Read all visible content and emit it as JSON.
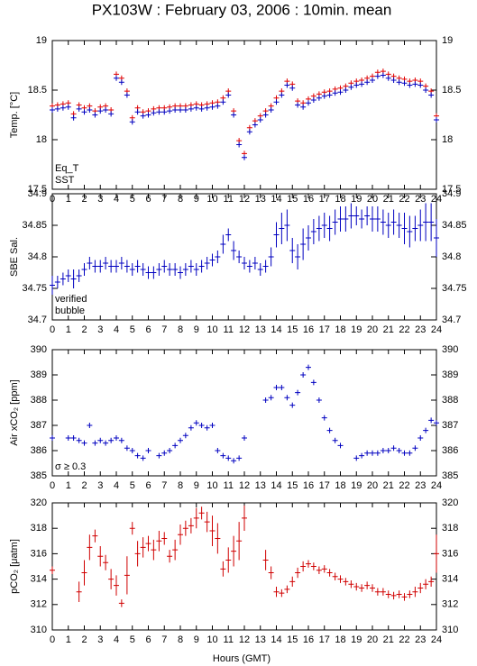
{
  "title": "PX103W : February 03, 2006 : 10min. mean",
  "x_label": "Hours (GMT)",
  "chart_data": [
    {
      "type": "scatter",
      "y_label": "Temp. [°C]",
      "xlim": [
        0,
        24
      ],
      "ylim": [
        17.5,
        19
      ],
      "xticks": [
        0,
        1,
        2,
        3,
        4,
        5,
        6,
        7,
        8,
        9,
        10,
        11,
        12,
        13,
        14,
        15,
        16,
        17,
        18,
        19,
        20,
        21,
        22,
        23,
        24
      ],
      "yticks": [
        17.5,
        18,
        18.5,
        19
      ],
      "x": [
        0,
        0.33,
        0.67,
        1,
        1.33,
        1.67,
        2,
        2.33,
        2.67,
        3,
        3.33,
        3.67,
        4,
        4.33,
        4.67,
        5,
        5.33,
        5.67,
        6,
        6.33,
        6.67,
        7,
        7.33,
        7.67,
        8,
        8.33,
        8.67,
        9,
        9.33,
        9.67,
        10,
        10.33,
        10.67,
        11,
        11.33,
        11.67,
        12,
        12.33,
        12.67,
        13,
        13.33,
        13.67,
        14,
        14.33,
        14.67,
        15,
        15.33,
        15.67,
        16,
        16.33,
        16.67,
        17,
        17.33,
        17.67,
        18,
        18.33,
        18.67,
        19,
        19.33,
        19.67,
        20,
        20.33,
        20.67,
        21,
        21.33,
        21.67,
        22,
        22.33,
        22.67,
        23,
        23.33,
        23.67,
        24
      ],
      "series": [
        {
          "name": "Eq_T",
          "color": "#e00000",
          "values": [
            18.34,
            18.35,
            18.36,
            18.37,
            18.26,
            18.35,
            18.32,
            18.34,
            18.29,
            18.33,
            18.34,
            18.3,
            18.66,
            18.62,
            18.49,
            18.22,
            18.32,
            18.28,
            18.29,
            18.31,
            18.32,
            18.32,
            18.33,
            18.34,
            18.34,
            18.34,
            18.35,
            18.36,
            18.35,
            18.36,
            18.37,
            18.38,
            18.42,
            18.49,
            18.29,
            17.99,
            17.86,
            18.12,
            18.19,
            18.24,
            18.29,
            18.34,
            18.42,
            18.49,
            18.59,
            18.56,
            18.39,
            18.37,
            18.41,
            18.44,
            18.46,
            18.48,
            18.49,
            18.51,
            18.52,
            18.54,
            18.57,
            18.59,
            18.6,
            18.62,
            18.64,
            18.68,
            18.69,
            18.66,
            18.64,
            18.62,
            18.61,
            18.59,
            18.6,
            18.59,
            18.54,
            18.49,
            18.24
          ]
        },
        {
          "name": "SST",
          "color": "#0000c0",
          "values": [
            18.3,
            18.31,
            18.32,
            18.33,
            18.22,
            18.31,
            18.28,
            18.3,
            18.25,
            18.29,
            18.3,
            18.26,
            18.62,
            18.58,
            18.45,
            18.18,
            18.28,
            18.24,
            18.25,
            18.27,
            18.28,
            18.28,
            18.29,
            18.3,
            18.3,
            18.3,
            18.31,
            18.32,
            18.31,
            18.32,
            18.33,
            18.34,
            18.38,
            18.45,
            18.25,
            17.95,
            17.82,
            18.08,
            18.15,
            18.2,
            18.25,
            18.3,
            18.38,
            18.45,
            18.55,
            18.52,
            18.35,
            18.33,
            18.37,
            18.4,
            18.42,
            18.44,
            18.45,
            18.47,
            18.48,
            18.5,
            18.53,
            18.55,
            18.56,
            18.58,
            18.6,
            18.64,
            18.65,
            18.62,
            18.6,
            18.58,
            18.57,
            18.55,
            18.56,
            18.55,
            18.5,
            18.45,
            18.2
          ]
        }
      ]
    },
    {
      "type": "scatter",
      "y_label": "SBE Sal.",
      "xlim": [
        0,
        24
      ],
      "ylim": [
        34.7,
        34.9
      ],
      "xticks": [
        0,
        1,
        2,
        3,
        4,
        5,
        6,
        7,
        8,
        9,
        10,
        11,
        12,
        13,
        14,
        15,
        16,
        17,
        18,
        19,
        20,
        21,
        22,
        23,
        24
      ],
      "yticks": [
        34.7,
        34.75,
        34.8,
        34.85,
        34.9
      ],
      "x": [
        0,
        0.33,
        0.67,
        1,
        1.33,
        1.67,
        2,
        2.33,
        2.67,
        3,
        3.33,
        3.67,
        4,
        4.33,
        4.67,
        5,
        5.33,
        5.67,
        6,
        6.33,
        6.67,
        7,
        7.33,
        7.67,
        8,
        8.33,
        8.67,
        9,
        9.33,
        9.67,
        10,
        10.33,
        10.67,
        11,
        11.33,
        11.67,
        12,
        12.33,
        12.67,
        13,
        13.33,
        13.67,
        14,
        14.33,
        14.67,
        15,
        15.33,
        15.67,
        16,
        16.33,
        16.67,
        17,
        17.33,
        17.67,
        18,
        18.33,
        18.67,
        19,
        19.33,
        19.67,
        20,
        20.33,
        20.67,
        21,
        21.33,
        21.67,
        22,
        22.33,
        22.67,
        23,
        23.33,
        23.67,
        24
      ],
      "series": [
        {
          "name": "verified",
          "color": "#0000c0",
          "values": [
            34.755,
            34.76,
            34.765,
            34.77,
            34.765,
            34.77,
            34.78,
            34.79,
            34.785,
            34.785,
            34.79,
            34.785,
            34.785,
            34.79,
            34.785,
            34.78,
            34.785,
            34.78,
            34.775,
            34.775,
            34.78,
            34.785,
            34.78,
            34.78,
            34.775,
            34.78,
            34.785,
            34.78,
            34.785,
            34.79,
            34.795,
            34.8,
            34.82,
            34.835,
            34.81,
            34.8,
            34.79,
            34.785,
            34.79,
            34.78,
            34.785,
            34.8,
            34.835,
            34.845,
            34.85,
            34.81,
            34.8,
            34.82,
            34.83,
            34.84,
            34.845,
            34.85,
            34.845,
            34.855,
            34.86,
            34.86,
            34.865,
            34.865,
            34.86,
            34.865,
            34.86,
            34.86,
            34.855,
            34.85,
            34.855,
            34.85,
            34.845,
            34.84,
            34.845,
            34.85,
            34.855,
            34.855,
            34.83
          ],
          "errors": [
            0.015,
            0.01,
            0.01,
            0.01,
            0.015,
            0.01,
            0.01,
            0.01,
            0.01,
            0.01,
            0.01,
            0.01,
            0.01,
            0.01,
            0.01,
            0.01,
            0.01,
            0.01,
            0.01,
            0.01,
            0.01,
            0.01,
            0.01,
            0.01,
            0.01,
            0.01,
            0.01,
            0.01,
            0.01,
            0.01,
            0.01,
            0.01,
            0.015,
            0.01,
            0.015,
            0.01,
            0.01,
            0.01,
            0.01,
            0.01,
            0.01,
            0.015,
            0.02,
            0.025,
            0.025,
            0.02,
            0.02,
            0.025,
            0.02,
            0.02,
            0.02,
            0.02,
            0.02,
            0.02,
            0.02,
            0.02,
            0.02,
            0.015,
            0.015,
            0.015,
            0.02,
            0.02,
            0.02,
            0.02,
            0.02,
            0.02,
            0.025,
            0.025,
            0.02,
            0.025,
            0.03,
            0.03,
            0.03
          ]
        }
      ],
      "annotations": [
        {
          "text": "bubble",
          "color": "#c000c0"
        }
      ]
    },
    {
      "type": "scatter",
      "y_label": "Air xCO₂ [ppm]",
      "xlim": [
        0,
        24
      ],
      "ylim": [
        385,
        390
      ],
      "xticks": [
        0,
        1,
        2,
        3,
        4,
        5,
        6,
        7,
        8,
        9,
        10,
        11,
        12,
        13,
        14,
        15,
        16,
        17,
        18,
        19,
        20,
        21,
        22,
        23,
        24
      ],
      "yticks": [
        385,
        386,
        387,
        388,
        389,
        390
      ],
      "x": [
        0,
        0.33,
        0.67,
        1,
        1.33,
        1.67,
        2,
        2.33,
        2.67,
        3,
        3.33,
        3.67,
        4,
        4.33,
        4.67,
        5,
        5.33,
        5.67,
        6,
        6.33,
        6.67,
        7,
        7.33,
        7.67,
        8,
        8.33,
        8.67,
        9,
        9.33,
        9.67,
        10,
        10.33,
        10.67,
        11,
        11.33,
        11.67,
        12,
        12.33,
        12.67,
        13,
        13.33,
        13.67,
        14,
        14.33,
        14.67,
        15,
        15.33,
        15.67,
        16,
        16.33,
        16.67,
        17,
        17.33,
        17.67,
        18,
        18.33,
        18.67,
        19,
        19.33,
        19.67,
        20,
        20.33,
        20.67,
        21,
        21.33,
        21.67,
        22,
        22.33,
        22.67,
        23,
        23.33,
        23.67,
        24
      ],
      "series": [
        {
          "color": "#0000c0",
          "values": [
            386.5,
            null,
            null,
            386.5,
            386.5,
            386.4,
            386.3,
            387.0,
            386.3,
            386.4,
            386.3,
            386.4,
            386.5,
            386.4,
            386.1,
            386.0,
            385.8,
            385.7,
            386.0,
            null,
            385.8,
            385.9,
            386.0,
            386.2,
            386.4,
            386.6,
            386.9,
            387.1,
            387.0,
            386.9,
            387.0,
            386.0,
            385.8,
            385.7,
            385.6,
            385.7,
            386.5,
            null,
            null,
            null,
            388.0,
            388.1,
            388.5,
            388.5,
            388.1,
            387.8,
            388.3,
            389.0,
            389.3,
            388.7,
            388.0,
            387.3,
            386.8,
            386.4,
            386.2,
            null,
            null,
            385.7,
            385.8,
            385.9,
            385.9,
            385.9,
            386.0,
            386.0,
            386.1,
            386.0,
            385.9,
            385.9,
            386.1,
            386.5,
            386.8,
            387.2,
            387.1
          ]
        }
      ],
      "annotations": [
        {
          "text": "σ ≥ 0.3",
          "color": "#c000c0"
        }
      ]
    },
    {
      "type": "scatter",
      "y_label": "pCO₂ [μatm]",
      "xlim": [
        0,
        24
      ],
      "ylim": [
        310,
        320
      ],
      "xticks": [
        0,
        1,
        2,
        3,
        4,
        5,
        6,
        7,
        8,
        9,
        10,
        11,
        12,
        13,
        14,
        15,
        16,
        17,
        18,
        19,
        20,
        21,
        22,
        23,
        24
      ],
      "yticks": [
        310,
        312,
        314,
        316,
        318,
        320
      ],
      "x": [
        0,
        0.33,
        0.67,
        1,
        1.33,
        1.67,
        2,
        2.33,
        2.67,
        3,
        3.33,
        3.67,
        4,
        4.33,
        4.67,
        5,
        5.33,
        5.67,
        6,
        6.33,
        6.67,
        7,
        7.33,
        7.67,
        8,
        8.33,
        8.67,
        9,
        9.33,
        9.67,
        10,
        10.33,
        10.67,
        11,
        11.33,
        11.67,
        12,
        12.33,
        12.67,
        13,
        13.33,
        13.67,
        14,
        14.33,
        14.67,
        15,
        15.33,
        15.67,
        16,
        16.33,
        16.67,
        17,
        17.33,
        17.67,
        18,
        18.33,
        18.67,
        19,
        19.33,
        19.67,
        20,
        20.33,
        20.67,
        21,
        21.33,
        21.67,
        22,
        22.33,
        22.67,
        23,
        23.33,
        23.67,
        24
      ],
      "series": [
        {
          "color": "#d00000",
          "values": [
            314.7,
            null,
            null,
            null,
            null,
            313.0,
            314.5,
            316.5,
            317.4,
            315.8,
            315.3,
            314.0,
            313.5,
            312.1,
            314.3,
            318.0,
            316.0,
            316.5,
            316.8,
            316.3,
            317.0,
            317.2,
            315.8,
            316.3,
            317.5,
            318.0,
            318.2,
            318.8,
            319.2,
            318.5,
            317.8,
            317.2,
            314.8,
            315.5,
            316.2,
            317.0,
            318.8,
            null,
            null,
            null,
            315.5,
            314.5,
            313.0,
            312.9,
            313.2,
            313.8,
            314.5,
            315.0,
            315.2,
            315.0,
            314.7,
            314.8,
            314.5,
            314.2,
            314.0,
            313.8,
            313.6,
            313.4,
            313.3,
            313.5,
            313.3,
            313.0,
            313.0,
            312.8,
            312.7,
            312.8,
            312.6,
            312.8,
            313.0,
            313.3,
            313.6,
            313.8,
            316.0
          ],
          "errors": [
            0.3,
            null,
            null,
            null,
            null,
            0.8,
            1.0,
            1.0,
            0.5,
            0.8,
            0.6,
            0.8,
            0.8,
            0.3,
            1.5,
            0.5,
            1.0,
            0.8,
            0.6,
            0.8,
            0.8,
            0.5,
            0.5,
            0.8,
            0.8,
            0.6,
            0.6,
            0.8,
            0.5,
            0.8,
            1.2,
            1.2,
            0.6,
            1.0,
            1.2,
            1.5,
            1.0,
            null,
            null,
            null,
            0.8,
            0.5,
            0.4,
            0.3,
            0.3,
            0.4,
            0.4,
            0.4,
            0.3,
            0.3,
            0.3,
            0.3,
            0.3,
            0.3,
            0.3,
            0.3,
            0.3,
            0.3,
            0.3,
            0.3,
            0.3,
            0.3,
            0.3,
            0.3,
            0.3,
            0.3,
            0.3,
            0.3,
            0.4,
            0.4,
            0.4,
            0.4,
            1.5
          ]
        }
      ]
    }
  ]
}
